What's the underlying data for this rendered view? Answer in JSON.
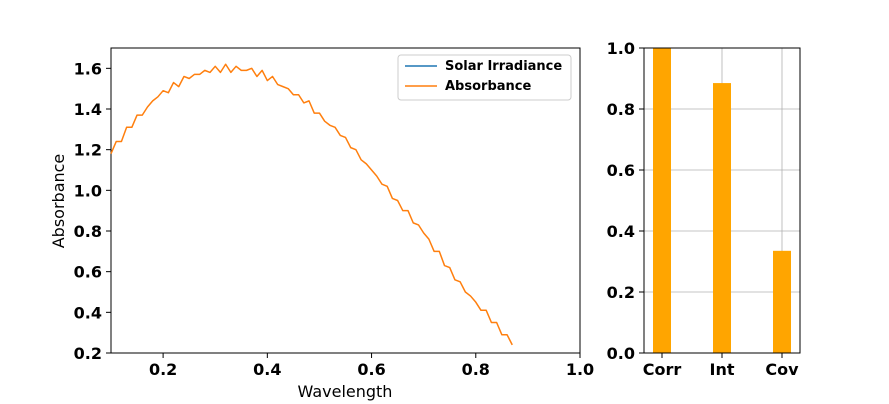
{
  "chart_data": [
    {
      "type": "line",
      "xlabel": "Wavelength",
      "ylabel": "Absorbance",
      "xlim": [
        0.1,
        1.0
      ],
      "ylim": [
        0.2,
        1.7
      ],
      "xticks": [
        "0.2",
        "0.4",
        "0.6",
        "0.8",
        "1.0"
      ],
      "yticks": [
        "0.2",
        "0.4",
        "0.6",
        "0.8",
        "1.0",
        "1.2",
        "1.4",
        "1.6"
      ],
      "grid": false,
      "legend_position": "top-right",
      "series": [
        {
          "name": "Solar Irradiance",
          "color": "#1f77b4",
          "x": [],
          "y": []
        },
        {
          "name": "Absorbance",
          "color": "#ff7f0e",
          "x": [
            0.1,
            0.11,
            0.12,
            0.13,
            0.14,
            0.15,
            0.16,
            0.17,
            0.18,
            0.19,
            0.2,
            0.21,
            0.22,
            0.23,
            0.24,
            0.25,
            0.26,
            0.27,
            0.28,
            0.29,
            0.3,
            0.31,
            0.32,
            0.33,
            0.34,
            0.35,
            0.36,
            0.37,
            0.38,
            0.39,
            0.4,
            0.41,
            0.42,
            0.43,
            0.44,
            0.45,
            0.46,
            0.47,
            0.48,
            0.49,
            0.5,
            0.51,
            0.52,
            0.53,
            0.54,
            0.55,
            0.56,
            0.57,
            0.58,
            0.59,
            0.6,
            0.61,
            0.62,
            0.63,
            0.64,
            0.65,
            0.66,
            0.67,
            0.68,
            0.69,
            0.7,
            0.71,
            0.72,
            0.73,
            0.74,
            0.75,
            0.76,
            0.77,
            0.78,
            0.79,
            0.8,
            0.81,
            0.82,
            0.83,
            0.84,
            0.85,
            0.86,
            0.87
          ],
          "y": [
            1.18,
            1.24,
            1.24,
            1.31,
            1.31,
            1.37,
            1.37,
            1.41,
            1.44,
            1.46,
            1.49,
            1.48,
            1.53,
            1.51,
            1.56,
            1.55,
            1.57,
            1.57,
            1.59,
            1.58,
            1.61,
            1.58,
            1.62,
            1.58,
            1.61,
            1.59,
            1.59,
            1.6,
            1.56,
            1.59,
            1.54,
            1.56,
            1.52,
            1.51,
            1.5,
            1.47,
            1.47,
            1.43,
            1.44,
            1.38,
            1.38,
            1.34,
            1.32,
            1.31,
            1.27,
            1.26,
            1.21,
            1.2,
            1.15,
            1.13,
            1.1,
            1.07,
            1.03,
            1.02,
            0.96,
            0.95,
            0.9,
            0.9,
            0.84,
            0.83,
            0.79,
            0.76,
            0.7,
            0.7,
            0.63,
            0.62,
            0.56,
            0.55,
            0.5,
            0.48,
            0.45,
            0.41,
            0.41,
            0.35,
            0.35,
            0.29,
            0.29,
            0.24
          ]
        }
      ]
    },
    {
      "type": "bar",
      "categories": [
        "Corr",
        "Int",
        "Cov"
      ],
      "values": [
        1.0,
        0.885,
        0.335
      ],
      "ylim": [
        0.0,
        1.0
      ],
      "yticks": [
        "0.0",
        "0.2",
        "0.4",
        "0.6",
        "0.8",
        "1.0"
      ],
      "grid": true,
      "color": "#ffa500"
    }
  ]
}
